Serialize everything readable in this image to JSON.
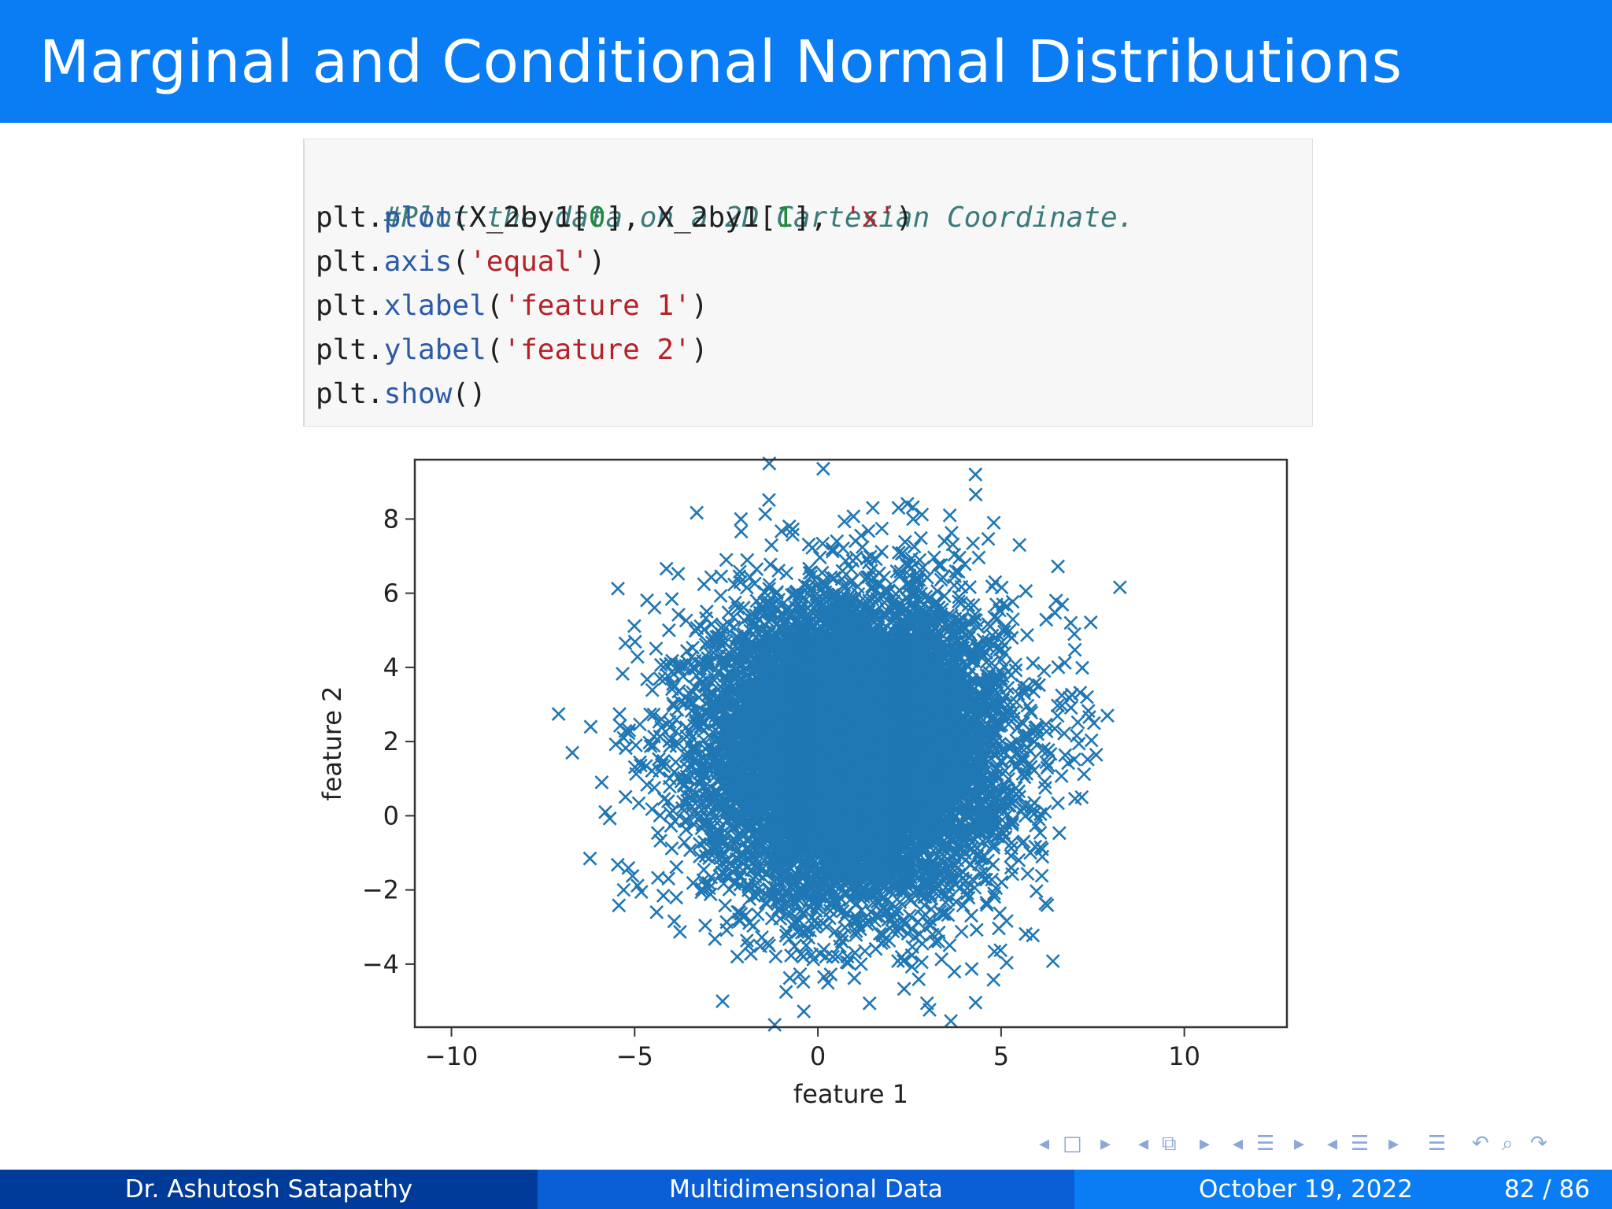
{
  "slide": {
    "title": "Marginal and Conditional Normal Distributions"
  },
  "code": {
    "line1": "#Plot the data on a 2D Cartesian Coordinate.",
    "line2_a": "plt.",
    "line2_fn": "plot",
    "line2_b": "(X_2by1[",
    "line2_n0": "0",
    "line2_c": "], X_2by1[",
    "line2_n1": "1",
    "line2_d": "], ",
    "line2_s": "'x'",
    "line2_e": ")",
    "line3_a": "plt.",
    "line3_fn": "axis",
    "line3_b": "(",
    "line3_s": "'equal'",
    "line3_e": ")",
    "line4_a": "plt.",
    "line4_fn": "xlabel",
    "line4_b": "(",
    "line4_s": "'feature 1'",
    "line4_e": ")",
    "line5_a": "plt.",
    "line5_fn": "ylabel",
    "line5_b": "(",
    "line5_s": "'feature 2'",
    "line5_e": ")",
    "line6_a": "plt.",
    "line6_fn": "show",
    "line6_e": "()"
  },
  "chart_data": {
    "type": "scatter",
    "xlabel": "feature 1",
    "ylabel": "feature 2",
    "xlim": [
      -11.0,
      12.8
    ],
    "ylim": [
      -5.7,
      9.6
    ],
    "xticks": [
      -10,
      -5,
      0,
      5,
      10
    ],
    "yticks": [
      -4,
      -2,
      0,
      2,
      4,
      6,
      8
    ],
    "marker": "x",
    "color": "#1f77b4",
    "distribution": {
      "mean_x": 1.0,
      "mean_y": 1.8,
      "std_x": 2.0,
      "std_y": 2.0,
      "count": 10000
    },
    "outliers": [
      {
        "x": -6.7,
        "y": 1.7
      },
      {
        "x": -6.2,
        "y": 2.4
      },
      {
        "x": -5.9,
        "y": 0.9
      },
      {
        "x": -5.8,
        "y": 0.1
      },
      {
        "x": -5.3,
        "y": -2.0
      },
      {
        "x": -5.3,
        "y": 2.1
      },
      {
        "x": -4.4,
        "y": -2.6
      },
      {
        "x": -2.6,
        "y": -5.0
      },
      {
        "x": -2.5,
        "y": 6.9
      },
      {
        "x": -2.2,
        "y": -3.8
      },
      {
        "x": -2.1,
        "y": 8.0
      },
      {
        "x": -1.9,
        "y": -3.5
      },
      {
        "x": -0.4,
        "y": -3.8
      },
      {
        "x": 1.5,
        "y": 8.3
      },
      {
        "x": 2.2,
        "y": 8.3
      },
      {
        "x": 2.6,
        "y": 8.0
      },
      {
        "x": 3.2,
        "y": -3.4
      },
      {
        "x": 3.6,
        "y": 8.1
      },
      {
        "x": 4.3,
        "y": 9.2
      },
      {
        "x": 4.8,
        "y": 7.9
      },
      {
        "x": 5.5,
        "y": 7.3
      },
      {
        "x": 6.5,
        "y": 5.8
      },
      {
        "x": 6.9,
        "y": 5.2
      },
      {
        "x": 7.0,
        "y": 4.9
      },
      {
        "x": 7.9,
        "y": 2.7
      },
      {
        "x": 7.2,
        "y": 0.5
      },
      {
        "x": 5.8,
        "y": -1.0
      }
    ]
  },
  "nav": {
    "icons": [
      "nav-left-arrow",
      "frame-icon",
      "nav-right-arrow",
      "nav-left-arrow",
      "subsection-icon",
      "nav-right-arrow",
      "nav-left-arrow",
      "section-icon",
      "nav-right-arrow",
      "nav-left-arrow",
      "document-icon",
      "nav-right-arrow",
      "outline-icon",
      "back-icon",
      "search-icon",
      "forward-icon"
    ]
  },
  "footer": {
    "author": "Dr. Ashutosh Satapathy",
    "topic": "Multidimensional Data",
    "date": "October 19, 2022",
    "page": "82 / 86"
  }
}
